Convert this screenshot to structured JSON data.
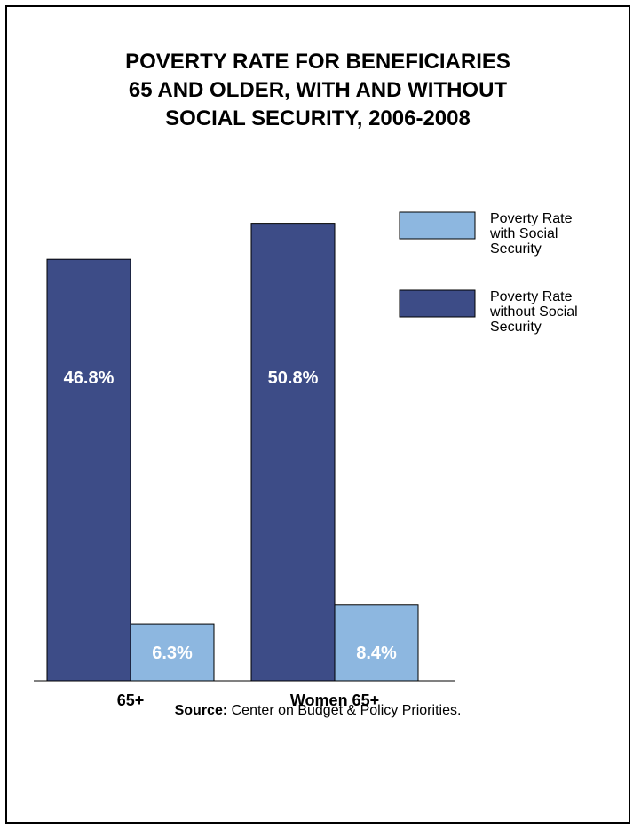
{
  "title_lines": [
    "POVERTY RATE FOR BENEFICIARIES",
    "65 AND OLDER, WITH AND WITHOUT",
    "SOCIAL SECURITY, 2006-2008"
  ],
  "source": {
    "label": "Source:",
    "text": " Center on Budget & Policy Priorities."
  },
  "chart_data": {
    "type": "bar",
    "categories": [
      "65+",
      "Women 65+"
    ],
    "series": [
      {
        "name": "Poverty Rate without Social Security",
        "values": [
          46.8,
          50.8
        ],
        "labels": [
          "46.8%",
          "50.8%"
        ],
        "color": "#3D4C87"
      },
      {
        "name": "Poverty Rate with Social Security",
        "values": [
          6.3,
          8.4
        ],
        "labels": [
          "6.3%",
          "8.4%"
        ],
        "color": "#8DB7E0"
      }
    ],
    "legend": {
      "placement": "right",
      "entries": [
        {
          "series": 1,
          "lines": [
            "Poverty Rate",
            "with Social",
            "Security"
          ]
        },
        {
          "series": 0,
          "lines": [
            "Poverty Rate",
            "without Social",
            "Security"
          ]
        }
      ]
    },
    "xlabel": "",
    "ylabel": "",
    "ylim": [
      0,
      55
    ],
    "grid": false
  }
}
